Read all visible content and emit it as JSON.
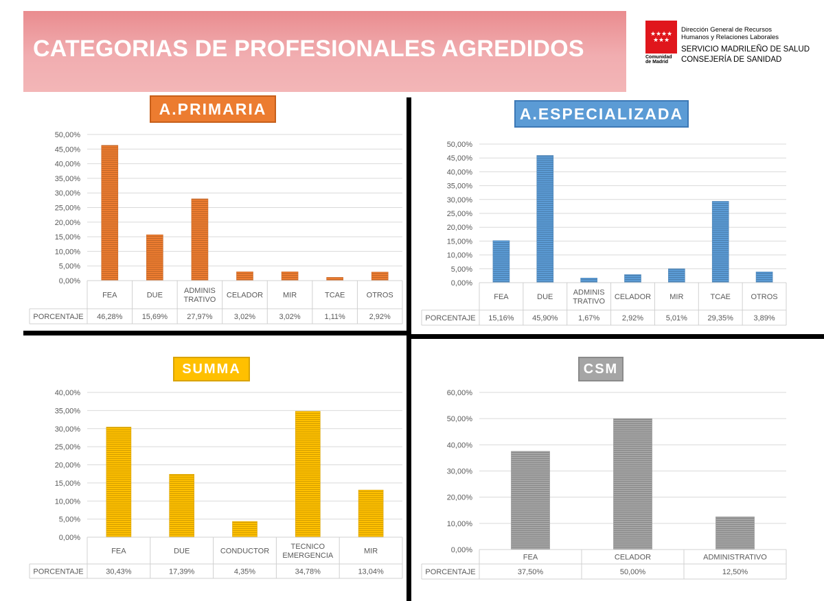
{
  "header": {
    "title": "CATEGORIAS DE PROFESIONALES AGREDIDOS",
    "logo": {
      "line1": "Dirección General de Recursos",
      "line2": "Humanos y Relaciones Laborales",
      "line3": "SERVICIO MADRILEÑO DE SALUD",
      "line4": "CONSEJERÍA DE SANIDAD",
      "small1": "Comunidad",
      "small2": "de Madrid"
    }
  },
  "colors": {
    "primaria": "#ec7c30",
    "especializada": "#5b9bd5",
    "summa": "#ffc000",
    "csm": "#a5a5a5"
  },
  "chart_data": [
    {
      "id": "primaria",
      "type": "bar",
      "title": "A.PRIMARIA",
      "categories": [
        [
          "FEA"
        ],
        [
          "DUE"
        ],
        [
          "ADMINIS",
          "TRATIVO"
        ],
        [
          "CELADOR"
        ],
        [
          "MIR"
        ],
        [
          "TCAE"
        ],
        [
          "OTROS"
        ]
      ],
      "series": [
        {
          "name": "PORCENTAJE",
          "values": [
            46.28,
            15.69,
            27.97,
            3.02,
            3.02,
            1.11,
            2.92
          ]
        }
      ],
      "value_labels": [
        "46,28%",
        "15,69%",
        "27,97%",
        "3,02%",
        "3,02%",
        "1,11%",
        "2,92%"
      ],
      "yticks": [
        "0,00%",
        "5,00%",
        "10,00%",
        "15,00%",
        "20,00%",
        "25,00%",
        "30,00%",
        "35,00%",
        "40,00%",
        "45,00%",
        "50,00%"
      ],
      "ylim": [
        0,
        50
      ],
      "grid": true,
      "legend": "data-table"
    },
    {
      "id": "especializada",
      "type": "bar",
      "title": "A.ESPECIALIZADA",
      "categories": [
        [
          "FEA"
        ],
        [
          "DUE"
        ],
        [
          "ADMINIS",
          "TRATIVO"
        ],
        [
          "CELADOR"
        ],
        [
          "MIR"
        ],
        [
          "TCAE"
        ],
        [
          "OTROS"
        ]
      ],
      "series": [
        {
          "name": "PORCENTAJE",
          "values": [
            15.16,
            45.9,
            1.67,
            2.92,
            5.01,
            29.35,
            3.89
          ]
        }
      ],
      "value_labels": [
        "15,16%",
        "45,90%",
        "1,67%",
        "2,92%",
        "5,01%",
        "29,35%",
        "3,89%"
      ],
      "yticks": [
        "0,00%",
        "5,00%",
        "10,00%",
        "15,00%",
        "20,00%",
        "25,00%",
        "30,00%",
        "35,00%",
        "40,00%",
        "45,00%",
        "50,00%"
      ],
      "ylim": [
        0,
        50
      ],
      "grid": true,
      "legend": "data-table"
    },
    {
      "id": "summa",
      "type": "bar",
      "title": "SUMMA",
      "categories": [
        [
          "FEA"
        ],
        [
          "DUE"
        ],
        [
          "CONDUCTOR"
        ],
        [
          "TECNICO",
          "EMERGENCIA"
        ],
        [
          "MIR"
        ]
      ],
      "series": [
        {
          "name": "PORCENTAJE",
          "values": [
            30.43,
            17.39,
            4.35,
            34.78,
            13.04
          ]
        }
      ],
      "value_labels": [
        "30,43%",
        "17,39%",
        "4,35%",
        "34,78%",
        "13,04%"
      ],
      "yticks": [
        "0,00%",
        "5,00%",
        "10,00%",
        "15,00%",
        "20,00%",
        "25,00%",
        "30,00%",
        "35,00%",
        "40,00%"
      ],
      "ylim": [
        0,
        40
      ],
      "grid": true,
      "legend": "data-table"
    },
    {
      "id": "csm",
      "type": "bar",
      "title": "CSM",
      "categories": [
        [
          "FEA"
        ],
        [
          "CELADOR"
        ],
        [
          "ADMINISTRATIVO"
        ]
      ],
      "series": [
        {
          "name": "PORCENTAJE",
          "values": [
            37.5,
            50.0,
            12.5
          ]
        }
      ],
      "value_labels": [
        "37,50%",
        "50,00%",
        "12,50%"
      ],
      "yticks": [
        "0,00%",
        "10,00%",
        "20,00%",
        "30,00%",
        "40,00%",
        "50,00%",
        "60,00%"
      ],
      "ylim": [
        0,
        60
      ],
      "grid": true,
      "legend": "data-table"
    }
  ]
}
